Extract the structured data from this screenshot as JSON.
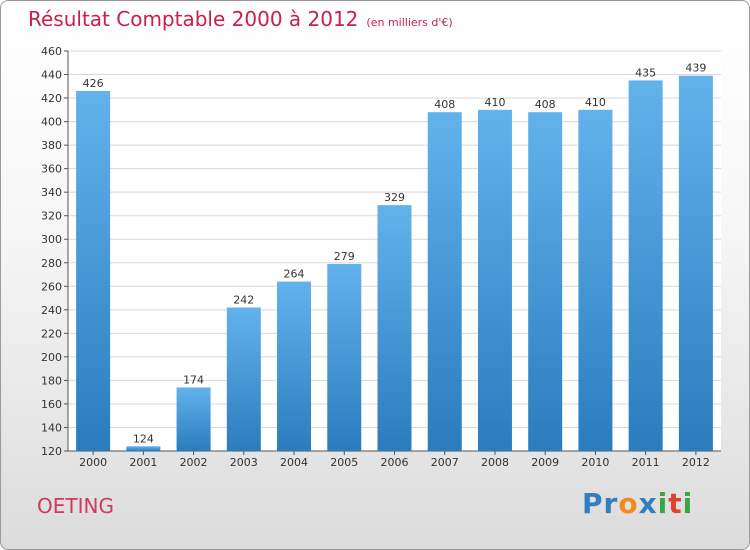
{
  "title": "Résultat Comptable 2000 à 2012",
  "subtitle": "(en milliers d'€)",
  "commune": "OETING",
  "logo": {
    "text": "Proxiti",
    "letters": [
      "P",
      "r",
      "o",
      "x",
      "i",
      "t",
      "i"
    ],
    "colors": [
      "#2f7fc1",
      "#2f7fc1",
      "#f08a1c",
      "#2f7fc1",
      "#3aa640",
      "#e0402e",
      "#3aa640"
    ]
  },
  "colors": {
    "bar_light": "#62b2ec",
    "bar_dark": "#2a7cbd",
    "title": "#c8204c",
    "grid": "#d8d8d8"
  },
  "chart_data": {
    "type": "bar",
    "title": "Résultat Comptable 2000 à 2012",
    "subtitle": "(en milliers d'€)",
    "categories": [
      "2000",
      "2001",
      "2002",
      "2003",
      "2004",
      "2005",
      "2006",
      "2007",
      "2008",
      "2009",
      "2010",
      "2011",
      "2012"
    ],
    "values": [
      426,
      124,
      174,
      242,
      264,
      279,
      329,
      408,
      410,
      408,
      410,
      435,
      439
    ],
    "ylim": [
      120,
      460
    ],
    "yticks": [
      120,
      140,
      160,
      180,
      200,
      220,
      240,
      260,
      280,
      300,
      320,
      340,
      360,
      380,
      400,
      420,
      440,
      460
    ],
    "grid": true,
    "xlabel": "",
    "ylabel": ""
  }
}
